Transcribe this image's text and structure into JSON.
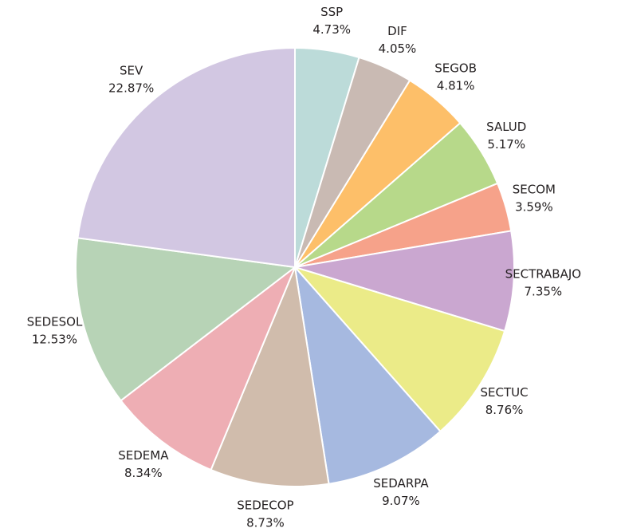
{
  "chart_data": {
    "type": "pie",
    "categories": [
      "SSP",
      "DIF",
      "SEGOB",
      "SALUD",
      "SECOM",
      "SECTRABAJO",
      "SECTUC",
      "SEDARPA",
      "SEDECOP",
      "SEDEMA",
      "SEDESOL",
      "SEV"
    ],
    "values": [
      4.73,
      4.05,
      4.81,
      5.17,
      3.59,
      7.35,
      8.76,
      9.07,
      8.73,
      8.34,
      12.53,
      22.87
    ],
    "value_labels": [
      "4.73%",
      "4.05%",
      "4.81%",
      "5.17%",
      "3.59%",
      "7.35%",
      "8.76%",
      "9.07%",
      "8.73%",
      "8.34%",
      "12.53%",
      "22.87%"
    ],
    "colors": [
      "#bcdbd9",
      "#c9bab3",
      "#fdbf69",
      "#b7d98a",
      "#f6a28a",
      "#caa7d0",
      "#ebeb88",
      "#a6b9e0",
      "#d0bcac",
      "#eeaeb4",
      "#b7d3b6",
      "#d2c7e2"
    ]
  }
}
